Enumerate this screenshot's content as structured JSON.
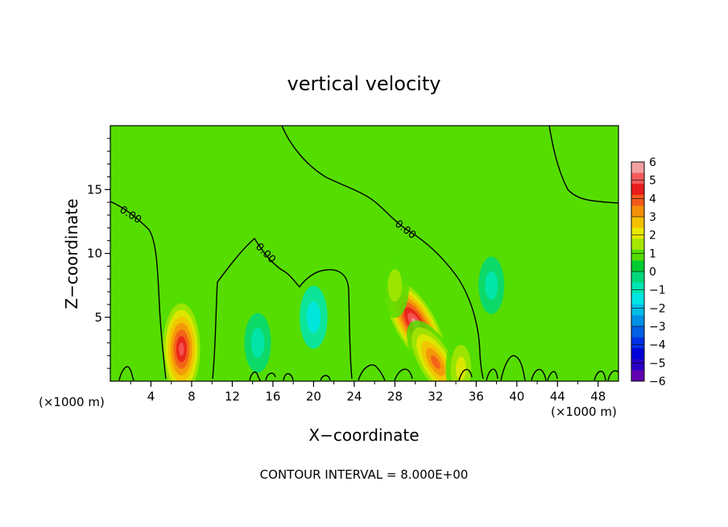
{
  "chart_data": {
    "type": "heatmap",
    "title": "vertical velocity",
    "xlabel": "X−coordinate",
    "ylabel": "Z−coordinate",
    "x_unit_left": "(×1000 m)",
    "x_unit_right": "(×1000 m)",
    "xlim": [
      0,
      50
    ],
    "ylim": [
      0,
      20
    ],
    "x_ticks": [
      4,
      8,
      12,
      16,
      20,
      24,
      28,
      32,
      36,
      40,
      44,
      48
    ],
    "y_ticks": [
      5,
      10,
      15
    ],
    "contour_level_label": "0.00",
    "footer": "CONTOUR INTERVAL = 8.000E+00",
    "colorbar": {
      "range": [
        -6,
        6
      ],
      "labels": [
        "6",
        "5",
        "4",
        "3",
        "2",
        "1",
        "0",
        "−1",
        "−2",
        "−3",
        "−4",
        "−5",
        "−6"
      ],
      "colors": [
        "#f2a0a0",
        "#f55a5a",
        "#e81c1c",
        "#f25a1a",
        "#f5900a",
        "#f5c000",
        "#e8e800",
        "#a6e600",
        "#55dd00",
        "#00cc33",
        "#00d87a",
        "#00e6b4",
        "#00e6e6",
        "#00bde6",
        "#0090e6",
        "#0060e6",
        "#0030e6",
        "#0000d8",
        "#2a00c8",
        "#6000b0"
      ]
    },
    "features": [
      {
        "label": "updraft",
        "x": 7,
        "z": 2.5,
        "w": 5.0
      },
      {
        "label": "updraft",
        "x": 30,
        "z": 4.5,
        "w": 5.5
      },
      {
        "label": "updraft",
        "x": 32,
        "z": 1.5,
        "w": 4.0
      },
      {
        "label": "weak updraft",
        "x": 28,
        "z": 7.5,
        "w": 1.5
      },
      {
        "label": "weak updraft",
        "x": 34.5,
        "z": 1.0,
        "w": 2.0
      },
      {
        "label": "weak downdraft",
        "x": 20,
        "z": 5.0,
        "w": -1.3
      },
      {
        "label": "weak downdraft",
        "x": 14.5,
        "z": 3.0,
        "w": -1.0
      },
      {
        "label": "weak downdraft",
        "x": 37.5,
        "z": 7.5,
        "w": -0.8
      }
    ]
  }
}
